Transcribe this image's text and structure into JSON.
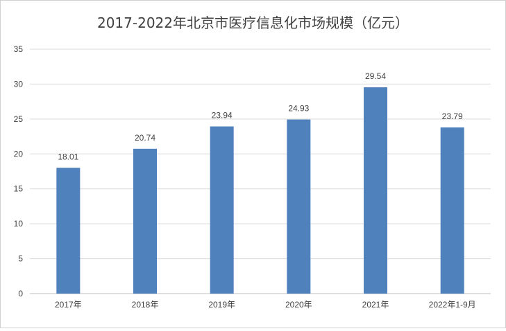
{
  "chart_data": {
    "type": "bar",
    "title": "2017-2022年北京市医疗信息化市场规模（亿元）",
    "categories": [
      "2017年",
      "2018年",
      "2019年",
      "2020年",
      "2021年",
      "2022年1-9月"
    ],
    "values": [
      18.01,
      20.74,
      23.94,
      24.93,
      29.54,
      23.79
    ],
    "data_labels": [
      "18.01",
      "20.74",
      "23.94",
      "24.93",
      "29.54",
      "23.79"
    ],
    "ylim": [
      0,
      35
    ],
    "yticks": [
      "0",
      "5",
      "10",
      "15",
      "20",
      "25",
      "30",
      "35"
    ],
    "grid": true,
    "legend": "none",
    "colors": {
      "bar": "#4f81bd",
      "grid": "#d9d9d9",
      "text": "#404040"
    }
  }
}
